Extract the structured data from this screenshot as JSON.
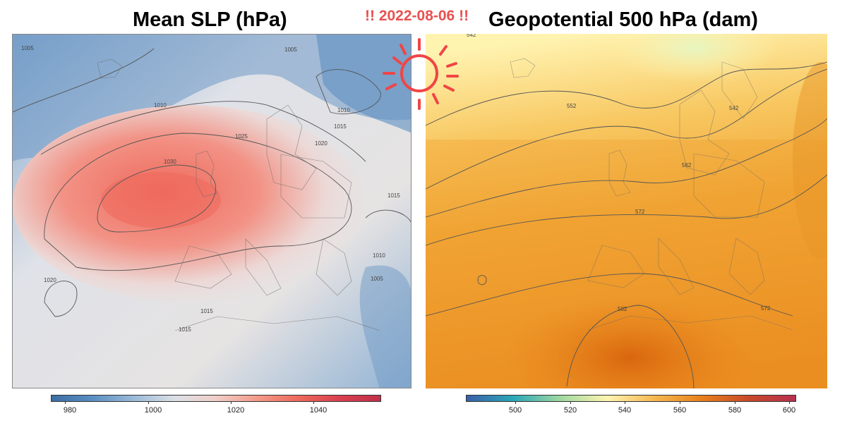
{
  "date_stamp": "!! 2022-08-06 !!",
  "colors": {
    "date_stamp": "#e85050",
    "sun": "#f04545",
    "slp_low": "#5b8fc2",
    "slp_mid": "#e8e4e2",
    "slp_high": "#ee6a5c",
    "z500_low": "#fff3b0",
    "z500_mid": "#f0a030",
    "z500_high": "#e07010"
  },
  "left_panel": {
    "title": "Mean SLP (hPa)",
    "colorbar": {
      "ticks": [
        "980",
        "1000",
        "1020",
        "1040"
      ],
      "colors": [
        "#3a6ea5",
        "#5b8fc2",
        "#9bbad8",
        "#dce0e6",
        "#efcfc8",
        "#f49a8a",
        "#ee6a5c",
        "#d94050",
        "#c0304a"
      ]
    },
    "contour_labels": [
      "1005",
      "1005",
      "1010",
      "1010",
      "1015",
      "1020",
      "1025",
      "1030",
      "1015",
      "1020",
      "1015",
      "1015",
      "1010",
      "1005"
    ]
  },
  "right_panel": {
    "title": "Geopotential 500 hPa (dam)",
    "colorbar": {
      "ticks": [
        "500",
        "520",
        "540",
        "560",
        "580",
        "600"
      ],
      "colors": [
        "#3a5fa8",
        "#2aa8b8",
        "#9fd9a0",
        "#fff4b0",
        "#f5b850",
        "#e8801c",
        "#c84a2a",
        "#b83050"
      ]
    },
    "contour_labels": [
      "542",
      "552",
      "542",
      "562",
      "572",
      "582",
      "572"
    ]
  }
}
